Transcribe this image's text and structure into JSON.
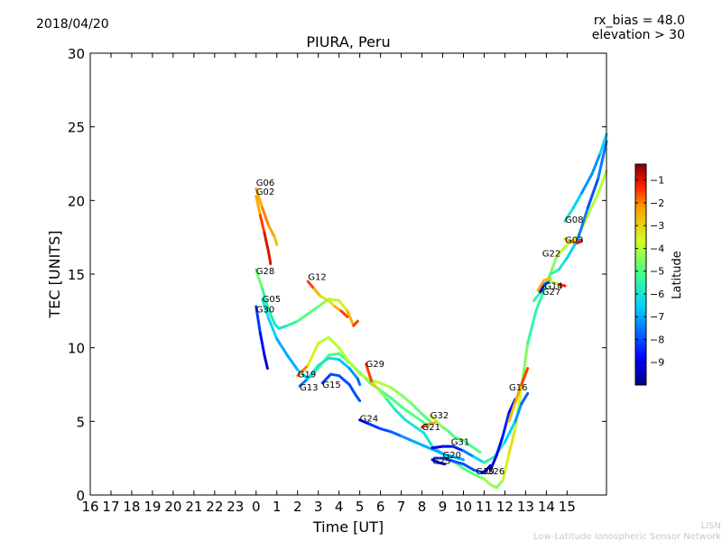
{
  "header": {
    "date": "2018/04/20",
    "rx_bias": "rx_bias = 48.0",
    "elevation": "elevation > 30"
  },
  "footer": {
    "line1": "LISN",
    "line2": "Low-Latitude Ionospheric Sensor Network"
  },
  "colors": {
    "watermark": "#c8c8c8",
    "frame": "#000000"
  },
  "colorbar": {
    "label": "Latitude",
    "range": [
      -10,
      -0.3
    ],
    "ticks": [
      -1,
      -2,
      -3,
      -4,
      -5,
      -6,
      -7,
      -8,
      -9
    ],
    "tick_labels": [
      "−1",
      "−2",
      "−3",
      "−4",
      "−5",
      "−6",
      "−7",
      "−8",
      "−9"
    ],
    "colormap": "jet"
  },
  "chart_data": {
    "type": "line",
    "title": "PIURA, Peru",
    "xlabel": "Time [UT]",
    "ylabel": "TEC [UNITS]",
    "xlim": [
      16,
      40.9
    ],
    "ylim": [
      0,
      30
    ],
    "x_ticks": [
      16,
      17,
      18,
      19,
      20,
      21,
      22,
      23,
      24,
      25,
      26,
      27,
      28,
      29,
      30,
      31,
      32,
      33,
      34,
      35,
      36,
      37,
      38,
      39
    ],
    "x_tick_labels": [
      "16",
      "17",
      "18",
      "19",
      "20",
      "21",
      "22",
      "23",
      "0",
      "1",
      "2",
      "3",
      "4",
      "5",
      "6",
      "7",
      "8",
      "9",
      "10",
      "11",
      "12",
      "13",
      "14",
      "15"
    ],
    "y_ticks": [
      0,
      5,
      10,
      15,
      20,
      25,
      30
    ],
    "y_tick_labels": [
      "0",
      "5",
      "10",
      "15",
      "20",
      "25",
      "30"
    ],
    "grid": false,
    "series": [
      {
        "name": "G06",
        "label_at": [
          24.0,
          21.0
        ],
        "points": [
          [
            24.0,
            20.8,
            -3
          ],
          [
            24.3,
            19.5,
            -2
          ],
          [
            24.6,
            18.3,
            -2
          ],
          [
            24.9,
            17.5,
            -2.5
          ],
          [
            25.0,
            17.0,
            -3
          ]
        ]
      },
      {
        "name": "G02",
        "label_at": [
          24.0,
          20.4
        ],
        "points": [
          [
            24.0,
            20.3,
            -3
          ],
          [
            24.2,
            19.0,
            -2
          ],
          [
            24.4,
            17.8,
            -1
          ],
          [
            24.6,
            16.5,
            -1
          ],
          [
            24.7,
            15.7,
            -1
          ]
        ]
      },
      {
        "name": "G28",
        "label_at": [
          24.0,
          15.0
        ],
        "points": [
          [
            24.0,
            15.3,
            -4.5
          ],
          [
            24.3,
            14.0,
            -5
          ],
          [
            24.6,
            12.6,
            -6
          ],
          [
            24.9,
            11.6,
            -6
          ],
          [
            25.1,
            11.3,
            -6
          ],
          [
            25.5,
            11.5,
            -6
          ],
          [
            26.0,
            11.8,
            -5
          ],
          [
            26.5,
            12.3,
            -5
          ],
          [
            27.0,
            12.8,
            -5
          ],
          [
            27.5,
            13.3,
            -4
          ],
          [
            28.0,
            13.2,
            -4
          ],
          [
            28.4,
            12.5,
            -3
          ],
          [
            28.7,
            11.5,
            -2
          ],
          [
            28.9,
            11.8,
            -1
          ]
        ]
      },
      {
        "name": "G05",
        "label_at": [
          24.3,
          13.1
        ],
        "points": [
          [
            24.3,
            13.3,
            -6
          ],
          [
            24.6,
            12.0,
            -6
          ],
          [
            25.0,
            10.6,
            -7
          ],
          [
            25.5,
            9.5,
            -7
          ],
          [
            26.0,
            8.5,
            -7
          ],
          [
            26.5,
            7.9,
            -6
          ],
          [
            27.0,
            8.6,
            -5
          ],
          [
            27.5,
            9.5,
            -5
          ],
          [
            28.0,
            9.6,
            -5
          ],
          [
            28.5,
            9.0,
            -5
          ],
          [
            29.0,
            8.3,
            -5
          ],
          [
            29.5,
            7.6,
            -5
          ],
          [
            30.0,
            7.1,
            -5
          ],
          [
            30.5,
            6.6,
            -5
          ],
          [
            31.0,
            6.0,
            -5
          ],
          [
            31.5,
            5.5,
            -5
          ],
          [
            32.0,
            5.0,
            -5
          ],
          [
            32.3,
            4.7,
            -5
          ]
        ]
      },
      {
        "name": "G30",
        "label_at": [
          24.0,
          12.4
        ],
        "points": [
          [
            24.0,
            12.8,
            -8
          ],
          [
            24.2,
            11.0,
            -8.5
          ],
          [
            24.4,
            9.5,
            -9
          ],
          [
            24.55,
            8.6,
            -9.5
          ]
        ]
      },
      {
        "name": "G12",
        "label_at": [
          26.5,
          14.6
        ],
        "points": [
          [
            26.5,
            14.5,
            -1
          ],
          [
            26.8,
            14.0,
            -2
          ],
          [
            27.1,
            13.5,
            -3
          ],
          [
            27.5,
            13.2,
            -3.5
          ],
          [
            27.8,
            12.8,
            -3
          ],
          [
            28.1,
            12.5,
            -2
          ],
          [
            28.4,
            12.1,
            -1
          ]
        ]
      },
      {
        "name": "G19",
        "label_at": [
          26.0,
          8.0
        ],
        "points": [
          [
            26.0,
            8.1,
            -1
          ],
          [
            26.5,
            8.8,
            -3
          ],
          [
            27.0,
            10.3,
            -4
          ],
          [
            27.5,
            10.7,
            -4
          ],
          [
            28.0,
            10.0,
            -4
          ],
          [
            28.5,
            9.0,
            -4
          ],
          [
            29.0,
            8.2,
            -4
          ],
          [
            29.5,
            7.8,
            -4
          ],
          [
            30.0,
            7.6,
            -4
          ],
          [
            30.5,
            7.3,
            -4
          ],
          [
            31.0,
            6.8,
            -4.5
          ],
          [
            31.5,
            6.2,
            -4.5
          ],
          [
            32.0,
            5.5,
            -5
          ],
          [
            32.4,
            5.0,
            -5
          ]
        ]
      },
      {
        "name": "G13",
        "label_at": [
          26.1,
          7.1
        ],
        "points": [
          [
            26.1,
            7.4,
            -9
          ],
          [
            26.5,
            7.9,
            -6
          ],
          [
            27.0,
            8.8,
            -6
          ],
          [
            27.5,
            9.3,
            -6
          ],
          [
            28.0,
            9.2,
            -6.5
          ],
          [
            28.5,
            8.6,
            -7
          ],
          [
            28.9,
            7.9,
            -7.5
          ],
          [
            29.0,
            7.5,
            -8
          ]
        ]
      },
      {
        "name": "G15",
        "label_at": [
          27.2,
          7.3
        ],
        "points": [
          [
            27.2,
            7.6,
            -8.5
          ],
          [
            27.6,
            8.2,
            -8
          ],
          [
            28.0,
            8.1,
            -8
          ],
          [
            28.5,
            7.5,
            -8
          ],
          [
            28.8,
            6.8,
            -8
          ],
          [
            29.0,
            6.4,
            -8
          ]
        ]
      },
      {
        "name": "G29",
        "label_at": [
          29.3,
          8.7
        ],
        "points": [
          [
            29.3,
            8.9,
            -1
          ],
          [
            29.6,
            7.6,
            -2
          ],
          [
            29.9,
            7.2,
            -4
          ],
          [
            30.3,
            6.5,
            -5
          ],
          [
            30.7,
            5.8,
            -6
          ],
          [
            31.2,
            5.1,
            -6
          ],
          [
            31.7,
            4.6,
            -6
          ],
          [
            32.1,
            4.2,
            -6
          ],
          [
            32.5,
            3.3,
            -6
          ],
          [
            33.0,
            2.8,
            -5.5
          ],
          [
            33.5,
            2.3,
            -5
          ],
          [
            34.0,
            1.8,
            -5
          ],
          [
            34.5,
            1.4,
            -5
          ],
          [
            35.0,
            1.1,
            -4.5
          ],
          [
            35.3,
            0.7,
            -4
          ],
          [
            35.6,
            0.5,
            -5
          ],
          [
            35.9,
            1.0,
            -4
          ],
          [
            36.2,
            2.8,
            -3
          ],
          [
            36.5,
            4.5,
            -3.5
          ],
          [
            36.8,
            7.3,
            -4
          ],
          [
            37.1,
            10.3,
            -5
          ],
          [
            37.5,
            12.5,
            -6
          ],
          [
            38.0,
            14.3,
            -5
          ],
          [
            38.5,
            16.2,
            -4
          ],
          [
            39.0,
            17.0,
            -4
          ],
          [
            39.5,
            17.5,
            -3
          ],
          [
            40.0,
            19.0,
            -4
          ],
          [
            40.5,
            20.5,
            -4
          ],
          [
            40.9,
            22.0,
            -4
          ]
        ]
      },
      {
        "name": "G24",
        "label_at": [
          29.0,
          5.0
        ],
        "points": [
          [
            29.0,
            5.1,
            -9
          ],
          [
            29.5,
            4.8,
            -8.5
          ],
          [
            30.0,
            4.5,
            -8
          ],
          [
            30.5,
            4.3,
            -8
          ],
          [
            31.0,
            4.0,
            -7.5
          ],
          [
            31.5,
            3.7,
            -7
          ],
          [
            32.0,
            3.4,
            -7
          ],
          [
            32.5,
            3.1,
            -7
          ],
          [
            33.0,
            2.8,
            -7
          ],
          [
            33.5,
            2.6,
            -7
          ],
          [
            34.0,
            2.4,
            -7
          ]
        ]
      },
      {
        "name": "G21",
        "label_at": [
          32.0,
          4.4
        ],
        "points": [
          [
            32.0,
            4.6,
            -1
          ],
          [
            32.3,
            4.8,
            -2
          ],
          [
            32.6,
            4.9,
            -2.5
          ]
        ]
      },
      {
        "name": "G32",
        "label_at": [
          32.4,
          5.2
        ],
        "points": [
          [
            32.4,
            5.4,
            -3
          ],
          [
            32.7,
            5.0,
            -4
          ],
          [
            33.0,
            4.6,
            -4.5
          ],
          [
            33.3,
            4.3,
            -5
          ],
          [
            33.6,
            3.9,
            -5
          ],
          [
            34.0,
            3.7,
            -5
          ],
          [
            34.4,
            3.3,
            -5
          ],
          [
            34.8,
            2.9,
            -5
          ]
        ]
      },
      {
        "name": "G31",
        "label_at": [
          33.4,
          3.4
        ],
        "points": [
          [
            32.5,
            3.2,
            -9
          ],
          [
            33.0,
            3.3,
            -9
          ],
          [
            33.5,
            3.3,
            -9
          ],
          [
            34.0,
            3.0,
            -8
          ],
          [
            34.5,
            2.6,
            -7
          ],
          [
            35.0,
            2.2,
            -6
          ],
          [
            35.5,
            2.6,
            -5
          ],
          [
            36.0,
            3.6,
            -6
          ],
          [
            36.5,
            5.0,
            -7
          ],
          [
            36.8,
            6.2,
            -7.5
          ],
          [
            37.1,
            6.9,
            -8
          ]
        ]
      },
      {
        "name": "G20",
        "label_at": [
          33.0,
          2.5
        ],
        "points": [
          [
            32.6,
            2.5,
            -8
          ],
          [
            33.0,
            2.5,
            -8
          ],
          [
            33.5,
            2.3,
            -8
          ],
          [
            34.0,
            2.1,
            -8
          ],
          [
            34.5,
            1.7,
            -8
          ],
          [
            35.0,
            1.5,
            -8
          ]
        ]
      },
      {
        "name": "G25",
        "label_at": [
          32.5,
          2.1
        ],
        "points": [
          [
            32.5,
            2.4,
            -9
          ],
          [
            32.8,
            2.2,
            -9
          ],
          [
            33.1,
            2.1,
            -9.5
          ]
        ]
      },
      {
        "name": "G10",
        "label_at": [
          34.6,
          1.4
        ],
        "points": [
          [
            34.9,
            1.5,
            -9
          ],
          [
            35.1,
            1.7,
            -9.5
          ],
          [
            35.3,
            2.0,
            -9
          ]
        ]
      },
      {
        "name": "G26",
        "label_at": [
          35.1,
          1.4
        ],
        "points": [
          [
            35.3,
            1.7,
            -9.5
          ],
          [
            35.6,
            2.7,
            -9
          ],
          [
            35.9,
            4.0,
            -8.5
          ],
          [
            36.2,
            5.6,
            -8.5
          ],
          [
            36.5,
            6.5,
            -9
          ]
        ]
      },
      {
        "name": "G16",
        "label_at": [
          36.2,
          7.1
        ],
        "points": [
          [
            36.2,
            5.0,
            -3
          ],
          [
            36.5,
            6.3,
            -2.5
          ],
          [
            36.8,
            7.5,
            -2
          ],
          [
            37.1,
            8.6,
            -1
          ]
        ]
      },
      {
        "name": "G22",
        "label_at": [
          37.8,
          16.2
        ],
        "points": [
          [
            37.4,
            13.2,
            -6
          ],
          [
            37.8,
            13.9,
            -5
          ],
          [
            38.2,
            15.0,
            -5
          ],
          [
            38.6,
            15.3,
            -6
          ],
          [
            39.0,
            16.1,
            -6
          ],
          [
            39.5,
            17.3,
            -7
          ],
          [
            40.0,
            19.5,
            -8
          ],
          [
            40.5,
            21.5,
            -8
          ],
          [
            40.9,
            24.0,
            -7
          ]
        ]
      },
      {
        "name": "G14",
        "label_at": [
          37.9,
          14.0
        ],
        "points": [
          [
            37.7,
            13.8,
            -9.5
          ],
          [
            37.9,
            14.3,
            -9
          ],
          [
            38.2,
            14.5,
            -7
          ],
          [
            38.6,
            14.3,
            -1.5
          ],
          [
            38.9,
            14.2,
            -1
          ]
        ]
      },
      {
        "name": "G27",
        "label_at": [
          37.8,
          13.6
        ],
        "points": [
          [
            37.6,
            13.9,
            -2
          ],
          [
            37.9,
            14.6,
            -2.5
          ],
          [
            38.2,
            14.7,
            -3
          ]
        ]
      },
      {
        "name": "G08",
        "label_at": [
          38.9,
          18.5
        ],
        "points": [
          [
            38.9,
            18.6,
            -6
          ],
          [
            39.3,
            19.5,
            -6
          ],
          [
            39.7,
            20.5,
            -7
          ],
          [
            40.2,
            21.8,
            -7.5
          ],
          [
            40.6,
            23.2,
            -7
          ],
          [
            40.9,
            24.5,
            -6
          ]
        ]
      },
      {
        "name": "G03",
        "label_at": [
          38.9,
          17.1
        ],
        "points": [
          [
            38.9,
            17.4,
            -3
          ],
          [
            39.2,
            17.2,
            -2.5
          ],
          [
            39.5,
            17.1,
            -1.5
          ],
          [
            39.7,
            17.3,
            -1
          ]
        ]
      }
    ]
  }
}
